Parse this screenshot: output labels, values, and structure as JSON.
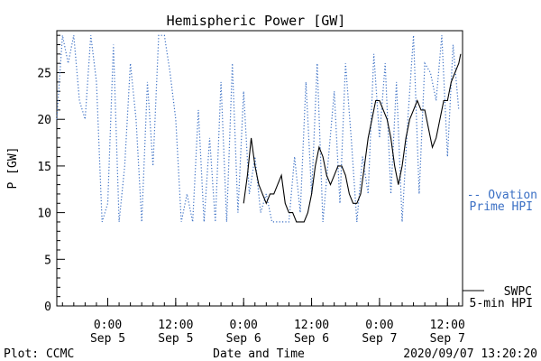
{
  "chart_data": {
    "type": "line",
    "title": "Hemispheric Power [GW]",
    "ylabel": "P [GW]",
    "xlabel": "Date and Time",
    "ylim": [
      0,
      29.5
    ],
    "xlim": [
      "2020-09-04 15:00",
      "2020-09-07 14:40"
    ],
    "y_ticks": [
      0,
      5,
      10,
      15,
      20,
      25
    ],
    "x_ticks": [
      {
        "time": "2020-09-05 00:00",
        "line1": "0:00",
        "line2": "Sep 5"
      },
      {
        "time": "2020-09-05 12:00",
        "line1": "12:00",
        "line2": "Sep 5"
      },
      {
        "time": "2020-09-06 00:00",
        "line1": "0:00",
        "line2": "Sep 6"
      },
      {
        "time": "2020-09-06 12:00",
        "line1": "12:00",
        "line2": "Sep 6"
      },
      {
        "time": "2020-09-07 00:00",
        "line1": "0:00",
        "line2": "Sep 7"
      },
      {
        "time": "2020-09-07 12:00",
        "line1": "12:00",
        "line2": "Sep 7"
      }
    ],
    "grid": false,
    "series": [
      {
        "name": "Ovation Prime HPI",
        "legend_line1": "-- Ovation",
        "legend_line2": "Prime HPI",
        "color": "#3a6fc4",
        "style": "dotted",
        "x": [
          "2020-09-04 15:00",
          "2020-09-04 16:00",
          "2020-09-04 17:00",
          "2020-09-04 18:00",
          "2020-09-04 19:00",
          "2020-09-04 20:00",
          "2020-09-04 21:00",
          "2020-09-04 22:00",
          "2020-09-04 23:00",
          "2020-09-05 00:00",
          "2020-09-05 01:00",
          "2020-09-05 02:00",
          "2020-09-05 03:00",
          "2020-09-05 04:00",
          "2020-09-05 05:00",
          "2020-09-05 06:00",
          "2020-09-05 07:00",
          "2020-09-05 08:00",
          "2020-09-05 09:00",
          "2020-09-05 10:00",
          "2020-09-05 11:00",
          "2020-09-05 12:00",
          "2020-09-05 13:00",
          "2020-09-05 14:00",
          "2020-09-05 15:00",
          "2020-09-05 16:00",
          "2020-09-05 17:00",
          "2020-09-05 18:00",
          "2020-09-05 19:00",
          "2020-09-05 20:00",
          "2020-09-05 21:00",
          "2020-09-05 22:00",
          "2020-09-05 23:00",
          "2020-09-06 00:00",
          "2020-09-06 01:00",
          "2020-09-06 02:00",
          "2020-09-06 03:00",
          "2020-09-06 04:00",
          "2020-09-06 05:00",
          "2020-09-06 06:00",
          "2020-09-06 07:00",
          "2020-09-06 08:00",
          "2020-09-06 09:00",
          "2020-09-06 10:00",
          "2020-09-06 11:00",
          "2020-09-06 12:00",
          "2020-09-06 13:00",
          "2020-09-06 14:00",
          "2020-09-06 15:00",
          "2020-09-06 16:00",
          "2020-09-06 17:00",
          "2020-09-06 18:00",
          "2020-09-06 19:00",
          "2020-09-06 20:00",
          "2020-09-06 21:00",
          "2020-09-06 22:00",
          "2020-09-06 23:00",
          "2020-09-07 00:00",
          "2020-09-07 01:00",
          "2020-09-07 02:00",
          "2020-09-07 03:00",
          "2020-09-07 04:00",
          "2020-09-07 05:00",
          "2020-09-07 06:00",
          "2020-09-07 07:00",
          "2020-09-07 08:00",
          "2020-09-07 09:00",
          "2020-09-07 10:00",
          "2020-09-07 11:00",
          "2020-09-07 12:00",
          "2020-09-07 13:00",
          "2020-09-07 14:00"
        ],
        "y": [
          20,
          29,
          26,
          29,
          22,
          20,
          29,
          24,
          9,
          11,
          28,
          9,
          15,
          26,
          20,
          9,
          24,
          15,
          29,
          29,
          25,
          20,
          9,
          12,
          9,
          21,
          9,
          18,
          9,
          24,
          9,
          26,
          10,
          23,
          12,
          16,
          10,
          12,
          9,
          9,
          9,
          9,
          16,
          10,
          24,
          12,
          26,
          9,
          16,
          23,
          11,
          26,
          18,
          9,
          16,
          12,
          27,
          18,
          26,
          12,
          24,
          9,
          20,
          29,
          12,
          26,
          25,
          22,
          29,
          16,
          28,
          21
        ]
      },
      {
        "name": "SWPC 5-min HPI",
        "legend_line1": "SWPC",
        "legend_line2": "5-min HPI",
        "color": "#000000",
        "style": "solid",
        "x": [
          "2020-09-06 00:00",
          "2020-09-06 00:40",
          "2020-09-06 01:20",
          "2020-09-06 02:00",
          "2020-09-06 02:40",
          "2020-09-06 03:20",
          "2020-09-06 04:00",
          "2020-09-06 04:40",
          "2020-09-06 05:20",
          "2020-09-06 06:00",
          "2020-09-06 06:40",
          "2020-09-06 07:20",
          "2020-09-06 08:00",
          "2020-09-06 08:40",
          "2020-09-06 09:20",
          "2020-09-06 10:00",
          "2020-09-06 10:40",
          "2020-09-06 11:20",
          "2020-09-06 12:00",
          "2020-09-06 12:40",
          "2020-09-06 13:20",
          "2020-09-06 14:00",
          "2020-09-06 14:40",
          "2020-09-06 15:20",
          "2020-09-06 16:00",
          "2020-09-06 16:40",
          "2020-09-06 17:20",
          "2020-09-06 18:00",
          "2020-09-06 18:40",
          "2020-09-06 19:20",
          "2020-09-06 20:00",
          "2020-09-06 20:40",
          "2020-09-06 21:20",
          "2020-09-06 22:00",
          "2020-09-06 22:40",
          "2020-09-06 23:20",
          "2020-09-07 00:00",
          "2020-09-07 00:40",
          "2020-09-07 01:20",
          "2020-09-07 02:00",
          "2020-09-07 02:40",
          "2020-09-07 03:20",
          "2020-09-07 04:00",
          "2020-09-07 04:40",
          "2020-09-07 05:20",
          "2020-09-07 06:00",
          "2020-09-07 06:40",
          "2020-09-07 07:20",
          "2020-09-07 08:00",
          "2020-09-07 08:40",
          "2020-09-07 09:20",
          "2020-09-07 10:00",
          "2020-09-07 10:40",
          "2020-09-07 11:20",
          "2020-09-07 12:00",
          "2020-09-07 12:40",
          "2020-09-07 13:20",
          "2020-09-07 14:00",
          "2020-09-07 14:20"
        ],
        "y": [
          11,
          14,
          18,
          15,
          13,
          12,
          11,
          12,
          12,
          13,
          14,
          11,
          10,
          10,
          9,
          9,
          9,
          10,
          12,
          15,
          17,
          16,
          14,
          13,
          14,
          15,
          15,
          14,
          12,
          11,
          11,
          12,
          15,
          18,
          20,
          22,
          22,
          21,
          20,
          18,
          15,
          13,
          15,
          18,
          20,
          21,
          22,
          21,
          21,
          19,
          17,
          18,
          20,
          22,
          22,
          24,
          25,
          26,
          27
        ]
      }
    ]
  },
  "footer": {
    "left": "Plot: CCMC",
    "right": "2020/09/07 13:20:20"
  }
}
